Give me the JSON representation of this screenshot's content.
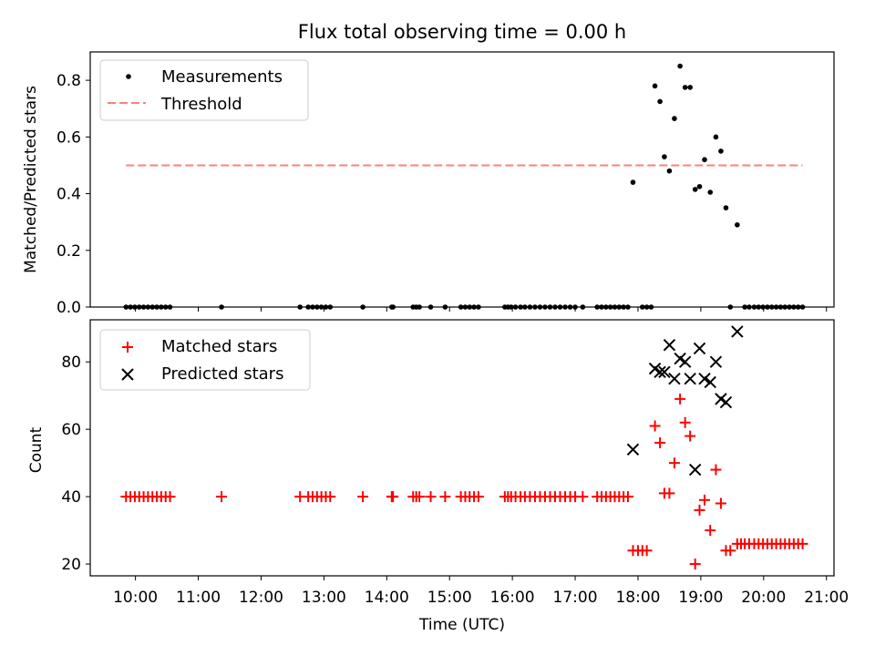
{
  "chart_data": [
    {
      "type": "scatter",
      "title": "Flux total observing time = 0.00 h",
      "xlabel": "",
      "ylabel": "Matched/Predicted stars",
      "xlim": [
        9.28,
        21.12
      ],
      "ylim": [
        0,
        0.9
      ],
      "yticks": [
        0.0,
        0.2,
        0.4,
        0.6,
        0.8
      ],
      "yticklabels": [
        "0.0",
        "0.2",
        "0.4",
        "0.6",
        "0.8"
      ],
      "legend_position": "top-left",
      "threshold": {
        "name": "Threshold",
        "value": 0.5,
        "x": [
          9.85,
          20.62
        ],
        "color": "#ff7f7f"
      },
      "series": [
        {
          "name": "Measurements",
          "color": "#000000",
          "x": [
            9.85,
            9.92,
            9.99,
            10.06,
            10.13,
            10.2,
            10.27,
            10.34,
            10.41,
            10.48,
            10.55,
            11.37,
            12.62,
            12.75,
            12.82,
            12.89,
            12.96,
            13.03,
            13.1,
            13.62,
            14.08,
            14.1,
            14.42,
            14.47,
            14.52,
            14.7,
            14.93,
            15.18,
            15.25,
            15.32,
            15.39,
            15.46,
            15.88,
            15.93,
            15.98,
            16.05,
            16.13,
            16.2,
            16.28,
            16.36,
            16.44,
            16.52,
            16.6,
            16.68,
            16.76,
            16.84,
            16.92,
            17.0,
            17.12,
            17.35,
            17.42,
            17.49,
            17.56,
            17.63,
            17.7,
            17.77,
            17.84,
            17.92,
            18.07,
            18.14,
            18.21,
            18.27,
            18.35,
            18.42,
            18.5,
            18.58,
            18.67,
            18.75,
            18.83,
            18.91,
            18.98,
            19.06,
            19.15,
            19.24,
            19.32,
            19.4,
            19.47,
            19.58,
            19.7,
            19.77,
            19.85,
            19.92,
            19.99,
            20.06,
            20.13,
            20.2,
            20.27,
            20.34,
            20.41,
            20.48,
            20.55,
            20.62
          ],
          "y": [
            0,
            0,
            0,
            0,
            0,
            0,
            0,
            0,
            0,
            0,
            0,
            0,
            0,
            0,
            0,
            0,
            0,
            0,
            0,
            0,
            0,
            0,
            0,
            0,
            0,
            0,
            0,
            0,
            0,
            0,
            0,
            0,
            0,
            0,
            0,
            0,
            0,
            0,
            0,
            0,
            0,
            0,
            0,
            0,
            0,
            0,
            0,
            0,
            0,
            0,
            0,
            0,
            0,
            0,
            0,
            0,
            0,
            0.44,
            0,
            0,
            0,
            0.78,
            0.725,
            0.53,
            0.48,
            0.665,
            0.85,
            0.775,
            0.775,
            0.415,
            0.425,
            0.52,
            0.405,
            0.6,
            0.55,
            0.35,
            0,
            0.29,
            0,
            0,
            0,
            0,
            0,
            0,
            0,
            0,
            0,
            0,
            0,
            0,
            0,
            0
          ]
        }
      ]
    },
    {
      "type": "scatter",
      "title": "",
      "xlabel": "Time (UTC)",
      "ylabel": "Count",
      "xlim": [
        9.28,
        21.12
      ],
      "ylim": [
        16.5,
        92.5
      ],
      "xticks": [
        10,
        11,
        12,
        13,
        14,
        15,
        16,
        17,
        18,
        19,
        20,
        21
      ],
      "xticklabels": [
        "10:00",
        "11:00",
        "12:00",
        "13:00",
        "14:00",
        "15:00",
        "16:00",
        "17:00",
        "18:00",
        "19:00",
        "20:00",
        "21:00"
      ],
      "yticks": [
        20,
        40,
        60,
        80
      ],
      "yticklabels": [
        "20",
        "40",
        "60",
        "80"
      ],
      "legend_position": "top-left",
      "series": [
        {
          "name": "Matched stars",
          "color": "#ff0000",
          "marker": "plus",
          "x": [
            9.85,
            9.92,
            9.99,
            10.06,
            10.13,
            10.2,
            10.27,
            10.34,
            10.41,
            10.48,
            10.55,
            11.37,
            12.62,
            12.75,
            12.82,
            12.89,
            12.96,
            13.03,
            13.1,
            13.62,
            14.08,
            14.1,
            14.42,
            14.47,
            14.52,
            14.7,
            14.93,
            15.18,
            15.25,
            15.32,
            15.39,
            15.46,
            15.88,
            15.93,
            15.98,
            16.05,
            16.13,
            16.2,
            16.28,
            16.36,
            16.44,
            16.52,
            16.6,
            16.68,
            16.76,
            16.84,
            16.92,
            17.0,
            17.12,
            17.35,
            17.42,
            17.49,
            17.56,
            17.63,
            17.7,
            17.77,
            17.84,
            17.92,
            18.0,
            18.07,
            18.14,
            18.27,
            18.35,
            18.42,
            18.5,
            18.58,
            18.67,
            18.75,
            18.83,
            18.91,
            18.98,
            19.06,
            19.15,
            19.24,
            19.32,
            19.4,
            19.47,
            19.58,
            19.64,
            19.7,
            19.77,
            19.85,
            19.92,
            19.99,
            20.06,
            20.13,
            20.2,
            20.27,
            20.34,
            20.41,
            20.48,
            20.55,
            20.62
          ],
          "y": [
            40,
            40,
            40,
            40,
            40,
            40,
            40,
            40,
            40,
            40,
            40,
            40,
            40,
            40,
            40,
            40,
            40,
            40,
            40,
            40,
            40,
            40,
            40,
            40,
            40,
            40,
            40,
            40,
            40,
            40,
            40,
            40,
            40,
            40,
            40,
            40,
            40,
            40,
            40,
            40,
            40,
            40,
            40,
            40,
            40,
            40,
            40,
            40,
            40,
            40,
            40,
            40,
            40,
            40,
            40,
            40,
            40,
            24,
            24,
            24,
            24,
            61,
            56,
            41,
            41,
            50,
            69,
            62,
            58,
            20,
            36,
            39,
            30,
            48,
            38,
            24,
            24,
            26,
            26,
            26,
            26,
            26,
            26,
            26,
            26,
            26,
            26,
            26,
            26,
            26,
            26,
            26,
            26
          ]
        },
        {
          "name": "Predicted stars",
          "color": "#000000",
          "marker": "x",
          "x": [
            17.92,
            18.27,
            18.35,
            18.42,
            18.5,
            18.58,
            18.67,
            18.75,
            18.83,
            18.91,
            18.98,
            19.06,
            19.15,
            19.24,
            19.32,
            19.4,
            19.58
          ],
          "y": [
            54,
            78,
            77,
            77,
            85,
            75,
            81,
            80,
            75,
            48,
            84,
            75,
            74,
            80,
            69,
            68,
            89
          ]
        }
      ]
    }
  ]
}
